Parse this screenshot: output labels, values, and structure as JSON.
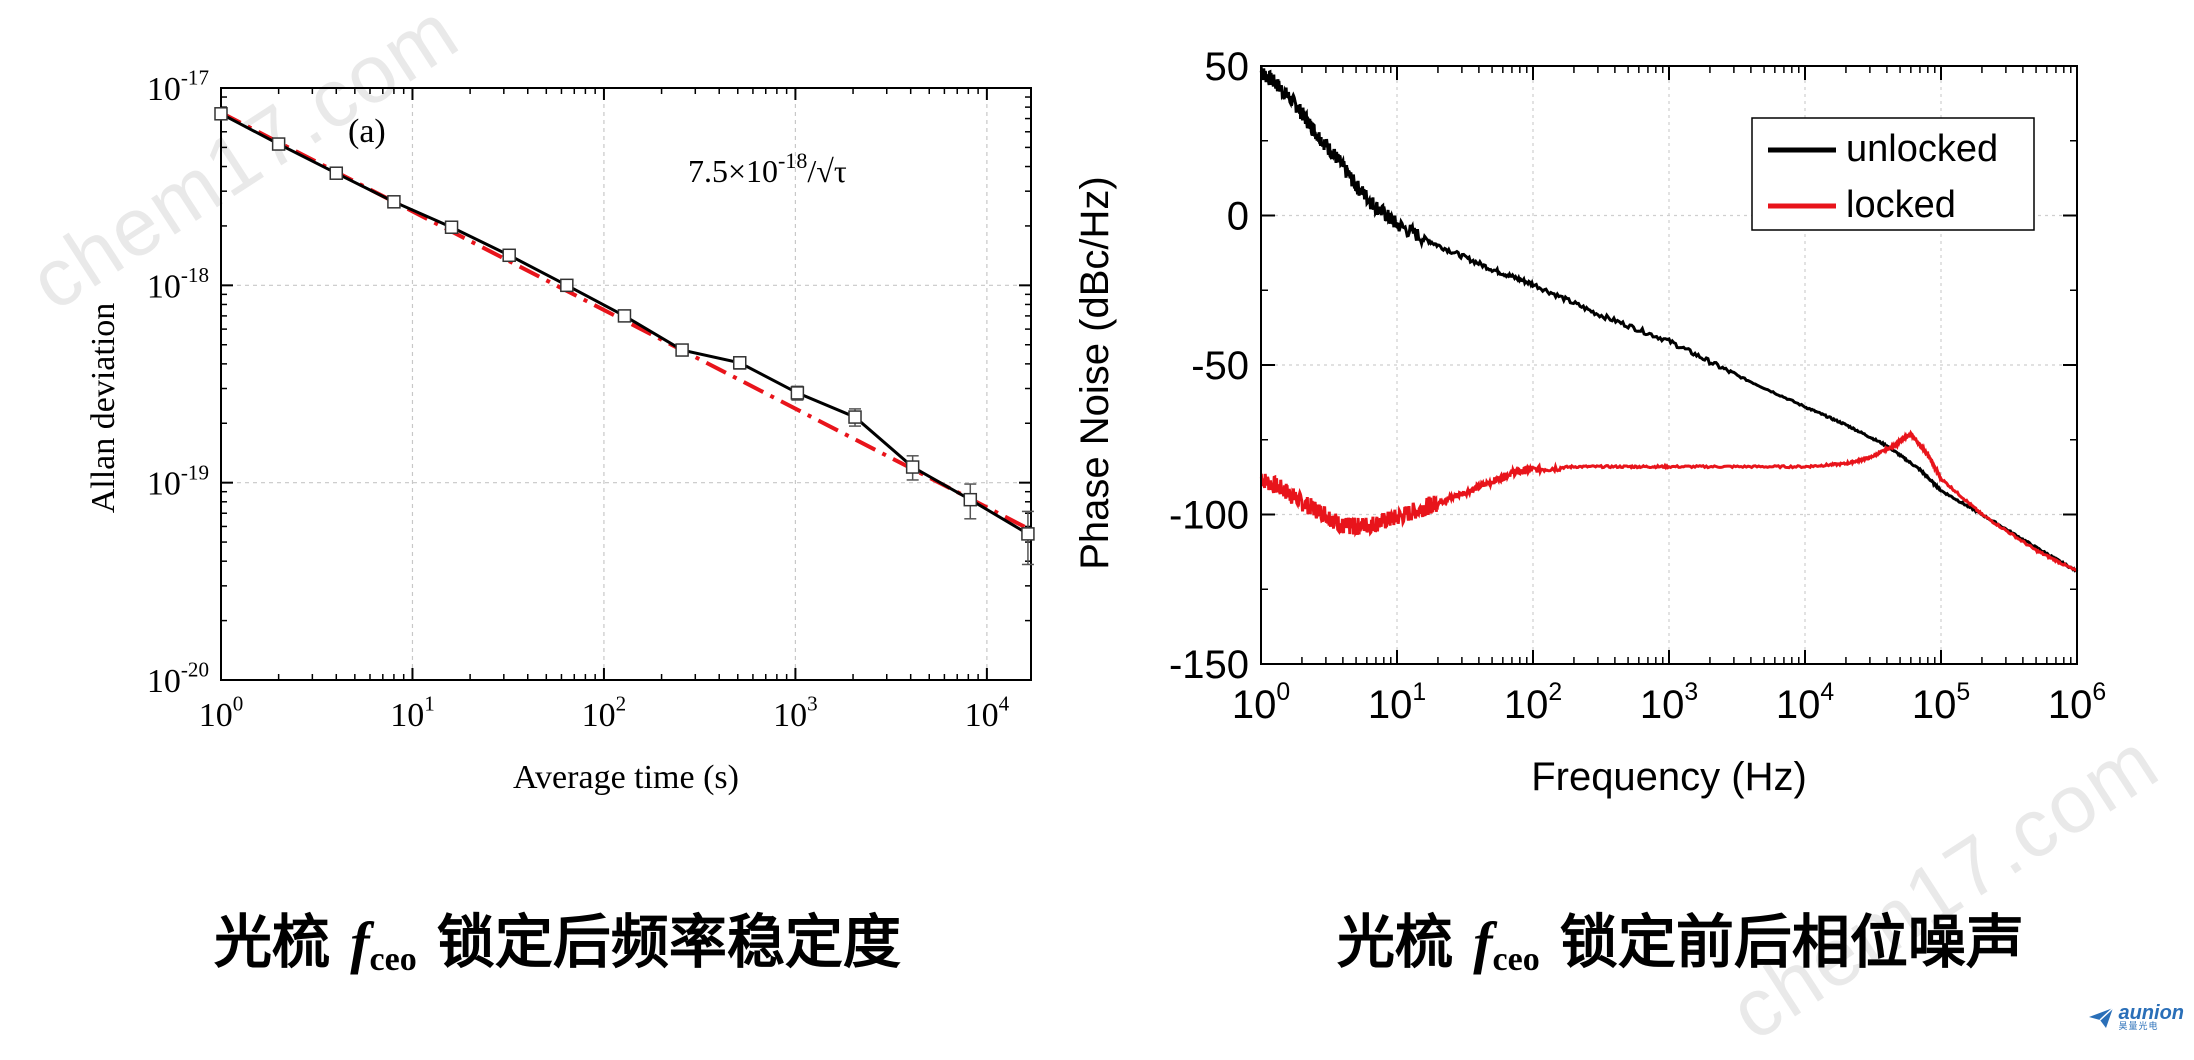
{
  "watermarks": [
    "chem17.com",
    "chem17.com"
  ],
  "chart_data": [
    {
      "type": "line",
      "panel_label": "(a)",
      "xlabel": "Average time (s)",
      "ylabel": "Allan deviation",
      "xscale": "log",
      "yscale": "log",
      "xlim": [
        1,
        17000
      ],
      "ylim": [
        1e-20,
        1e-17
      ],
      "x_ticks": [
        1,
        10,
        100,
        1000,
        10000
      ],
      "x_tick_labels": [
        [
          "10",
          "0"
        ],
        [
          "10",
          "1"
        ],
        [
          "10",
          "2"
        ],
        [
          "10",
          "3"
        ],
        [
          "10",
          "4"
        ]
      ],
      "y_ticks": [
        1e-20,
        1e-19,
        1e-18,
        1e-17
      ],
      "y_tick_labels": [
        [
          "10",
          "-20"
        ],
        [
          "10",
          "-19"
        ],
        [
          "10",
          "-18"
        ],
        [
          "10",
          "-17"
        ]
      ],
      "grid": true,
      "annotation": {
        "base": "7.5×10",
        "exp": "-18",
        "tail": "/√τ"
      },
      "series": [
        {
          "color": "#000000",
          "style": "solid-with-square-markers-and-errorbars",
          "x": [
            1,
            2,
            4,
            8,
            16,
            32,
            64,
            128,
            256,
            512,
            1024,
            2048,
            4096,
            8192,
            16384
          ],
          "y": [
            7.4e-18,
            5.2e-18,
            3.7e-18,
            2.65e-18,
            1.97e-18,
            1.42e-18,
            1e-18,
            7e-19,
            4.7e-19,
            4.05e-19,
            2.85e-19,
            2.15e-19,
            1.2e-19,
            8.2e-20,
            5.5e-20
          ],
          "yerr_rel": [
            0.03,
            0.03,
            0.03,
            0.04,
            0.04,
            0.05,
            0.05,
            0.06,
            0.06,
            0.07,
            0.08,
            0.1,
            0.14,
            0.2,
            0.3
          ]
        },
        {
          "color": "#e8141b",
          "style": "dash-dot",
          "x": [
            1,
            16000
          ],
          "y": [
            7.5e-18,
            5.93e-20
          ]
        }
      ]
    },
    {
      "type": "line",
      "xlabel": "Frequency (Hz)",
      "ylabel": "Phase Noise (dBc/Hz)",
      "xscale": "log",
      "xlim": [
        1,
        1000000
      ],
      "ylim": [
        -150,
        50
      ],
      "x_ticks": [
        1,
        10,
        100,
        1000,
        10000,
        100000,
        1000000
      ],
      "x_tick_labels": [
        [
          "10",
          "0"
        ],
        [
          "10",
          "1"
        ],
        [
          "10",
          "2"
        ],
        [
          "10",
          "3"
        ],
        [
          "10",
          "4"
        ],
        [
          "10",
          "5"
        ],
        [
          "10",
          "6"
        ]
      ],
      "y_ticks": [
        50,
        0,
        -50,
        -100,
        -150
      ],
      "y_tick_labels": [
        "50",
        "0",
        "-50",
        "-100",
        "-150"
      ],
      "grid": true,
      "legend_position": "top-right",
      "series": [
        {
          "name": "unlocked",
          "color": "#000000",
          "x": [
            1,
            1.3,
            1.8,
            2.5,
            3.5,
            5,
            7,
            10,
            20,
            50,
            100,
            300,
            1000,
            3000,
            10000,
            20000,
            40000,
            70000,
            100000,
            200000,
            500000,
            1000000
          ],
          "y": [
            48,
            44,
            37,
            28,
            20,
            10,
            3,
            -3,
            -10,
            -18,
            -23,
            -33,
            -42,
            -53,
            -64,
            -70,
            -77,
            -85,
            -92,
            -100,
            -111,
            -119
          ]
        },
        {
          "name": "locked",
          "color": "#e8141b",
          "x": [
            1,
            1.5,
            2,
            3,
            4,
            5,
            7,
            10,
            15,
            20,
            30,
            50,
            70,
            100,
            200,
            500,
            1000,
            3000,
            10000,
            20000,
            30000,
            45000,
            60000,
            80000,
            100000,
            200000,
            500000,
            1000000
          ],
          "y": [
            -88,
            -92,
            -96,
            -100,
            -104,
            -104,
            -103,
            -101,
            -98,
            -96,
            -93,
            -89,
            -86,
            -85,
            -84,
            -84,
            -84,
            -84,
            -84,
            -83,
            -81,
            -77,
            -73,
            -80,
            -88,
            -100,
            -112,
            -119
          ]
        }
      ]
    }
  ],
  "captions": [
    {
      "pre": "光梳 ",
      "f": "f",
      "sub": "ceo",
      "post": " 锁定后频率稳定度"
    },
    {
      "pre": "光梳 ",
      "f": "f",
      "sub": "ceo",
      "post": " 锁定前后相位噪声"
    }
  ],
  "logo": {
    "main": "aunion",
    "sub": "昊量光电",
    "color": "#2a6fb8"
  }
}
